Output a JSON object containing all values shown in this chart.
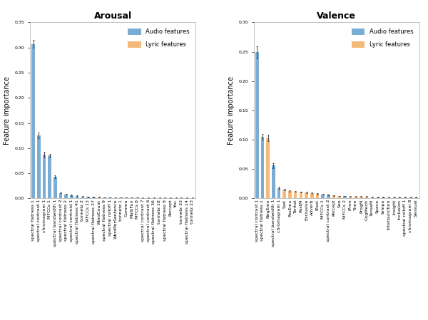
{
  "arousal": {
    "title": "Arousal",
    "ylim": [
      0,
      0.35
    ],
    "yticks": [
      0.0,
      0.05,
      0.1,
      0.15,
      0.2,
      0.25,
      0.3,
      0.35
    ],
    "ylabel": "Feature importance",
    "features": [
      "spectral flatness 1",
      "spectral contrast 1",
      "chromagram 1",
      "MFCCs 1",
      "spectral bandwidth 1",
      "spectral contrast 2",
      "spectral flatness 2",
      "spectral centroid 1",
      "spectral flatness 41",
      "tonnetz 2",
      "MFCCs 13",
      "spectral flatness 27",
      "WordCount",
      "spectral flatness 9",
      "spectral rolloff 1",
      "WordPerSentence",
      "tonnetz 1",
      "Comma",
      "MultiFun",
      "MFCCs 8",
      "spectral contrast 7",
      "spectral contrast 6",
      "spectral flatness 36",
      "tonnetz 18",
      "spectral flatness 8",
      "Percept",
      "You",
      "tonnetz 33",
      "spectral flatness 14",
      "tonnetz 23"
    ],
    "values": [
      0.307,
      0.125,
      0.087,
      0.085,
      0.043,
      0.011,
      0.008,
      0.006,
      0.005,
      0.004,
      0.003,
      0.003,
      0.003,
      0.002,
      0.002,
      0.002,
      0.002,
      0.002,
      0.002,
      0.002,
      0.001,
      0.001,
      0.001,
      0.001,
      0.001,
      0.001,
      0.001,
      0.001,
      0.001,
      0.001
    ],
    "errors": [
      0.008,
      0.006,
      0.005,
      0.004,
      0.003,
      0.001,
      0.001,
      0.001,
      0.001,
      0.001,
      0.0005,
      0.0005,
      0.0005,
      0.0005,
      0.0005,
      0.0005,
      0.0005,
      0.0005,
      0.0005,
      0.0005,
      0.0005,
      0.0005,
      0.0005,
      0.0005,
      0.0005,
      0.0005,
      0.0005,
      0.0005,
      0.0005,
      0.0005
    ],
    "colors": [
      "#7aadd4",
      "#7aadd4",
      "#7aadd4",
      "#7aadd4",
      "#7aadd4",
      "#7aadd4",
      "#7aadd4",
      "#7aadd4",
      "#7aadd4",
      "#7aadd4",
      "#7aadd4",
      "#7aadd4",
      "#f5b97a",
      "#7aadd4",
      "#7aadd4",
      "#f5b97a",
      "#7aadd4",
      "#f5b97a",
      "#f5b97a",
      "#7aadd4",
      "#7aadd4",
      "#7aadd4",
      "#7aadd4",
      "#7aadd4",
      "#7aadd4",
      "#f5b97a",
      "#f5b97a",
      "#7aadd4",
      "#7aadd4",
      "#7aadd4"
    ]
  },
  "valence": {
    "title": "Valence",
    "ylim": [
      0,
      0.3
    ],
    "yticks": [
      0.0,
      0.05,
      0.1,
      0.15,
      0.2,
      0.25,
      0.3
    ],
    "ylabel": "Feature importance",
    "features": [
      "spectral contrast 1",
      "spectral flatness 1",
      "NegEmo",
      "spectral bandwidth 1",
      "chromagram 1",
      "Sad",
      "PosEmo",
      "Tentat",
      "PastM",
      "Exclusive",
      "Adverb",
      "IPast",
      "MFCCs 1",
      "spectral contrast 2",
      "Percept",
      "See",
      "MFCCs 2",
      "iPron",
      "Time",
      "ProgM",
      "CogMech",
      "TenseM",
      "Space",
      "tempo",
      "Interpunction",
      "Insight",
      "Inclusion",
      "spectral rolloff 1",
      "chromagram 8",
      "Sensual"
    ],
    "values": [
      0.249,
      0.105,
      0.103,
      0.056,
      0.018,
      0.015,
      0.013,
      0.012,
      0.011,
      0.01,
      0.009,
      0.008,
      0.007,
      0.006,
      0.005,
      0.004,
      0.004,
      0.003,
      0.003,
      0.003,
      0.003,
      0.002,
      0.002,
      0.002,
      0.002,
      0.002,
      0.002,
      0.002,
      0.002,
      0.002
    ],
    "errors": [
      0.01,
      0.005,
      0.005,
      0.004,
      0.002,
      0.001,
      0.001,
      0.001,
      0.001,
      0.001,
      0.001,
      0.001,
      0.001,
      0.001,
      0.0005,
      0.0005,
      0.0005,
      0.0005,
      0.0005,
      0.0005,
      0.0005,
      0.0005,
      0.0005,
      0.0005,
      0.0005,
      0.0005,
      0.0005,
      0.0005,
      0.0005,
      0.0005
    ],
    "colors": [
      "#7aadd4",
      "#7aadd4",
      "#f5b97a",
      "#7aadd4",
      "#7aadd4",
      "#f5b97a",
      "#f5b97a",
      "#f5b97a",
      "#f5b97a",
      "#f5b97a",
      "#f5b97a",
      "#f5b97a",
      "#7aadd4",
      "#7aadd4",
      "#f5b97a",
      "#f5b97a",
      "#7aadd4",
      "#f5b97a",
      "#f5b97a",
      "#f5b97a",
      "#f5b97a",
      "#f5b97a",
      "#f5b97a",
      "#7aadd4",
      "#f5b97a",
      "#f5b97a",
      "#f5b97a",
      "#7aadd4",
      "#7aadd4",
      "#f5b97a"
    ]
  },
  "audio_color": "#7aadd4",
  "lyric_color": "#f5b97a",
  "background_color": "#ffffff",
  "plot_bg_color": "#ffffff",
  "tick_fontsize": 4.5,
  "label_fontsize": 7,
  "title_fontsize": 9,
  "legend_fontsize": 6
}
